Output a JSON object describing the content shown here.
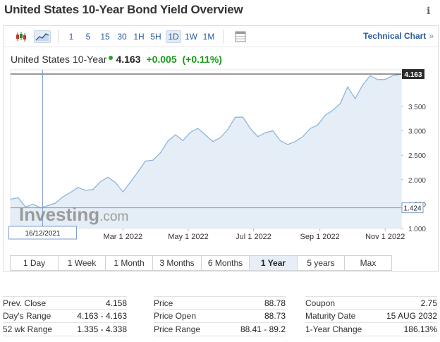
{
  "page": {
    "title": "United States 10-Year Bond Yield Overview",
    "info_icon": "i"
  },
  "toolbar": {
    "chart_type_icons": [
      "candlestick-icon",
      "area-chart-icon"
    ],
    "timeframes": [
      "1",
      "5",
      "15",
      "30",
      "1H",
      "5H",
      "1D",
      "1W",
      "1M"
    ],
    "active_timeframe": "1D",
    "settings_icon": "table-icon",
    "technical_chart_label": "Technical Chart",
    "technical_chart_arrow": "»"
  },
  "quote": {
    "name": "United States 10-Year",
    "last": "4.163",
    "change": "+0.005",
    "change_pct": "(+0.11%)"
  },
  "chart_data": {
    "type": "area",
    "title": "",
    "xlabel": "",
    "ylabel": "",
    "x_tick_labels": [
      "Mar 1 2022",
      "May 1 2022",
      "Jul 1 2022",
      "Sep 1 2022",
      "Nov 1 2022"
    ],
    "x_tick_dates": [
      "2022-03-01",
      "2022-05-01",
      "2022-07-01",
      "2022-09-01",
      "2022-11-01"
    ],
    "x_range": [
      "2021-11-16",
      "2022-11-16"
    ],
    "y_tick_labels": [
      "1.000",
      "1.500",
      "2.000",
      "2.500",
      "3.000",
      "3.500"
    ],
    "ylim": [
      1.0,
      4.25
    ],
    "last_value_label": "4.163",
    "crosshair_value_label": "1.424",
    "crosshair_date_label": "16/12/2021",
    "crosshair_date": "2021-12-16",
    "watermark": "Investing.com",
    "series": [
      {
        "x": [
          "2021-11-16",
          "2021-11-23",
          "2021-11-30",
          "2021-12-07",
          "2021-12-14",
          "2021-12-21",
          "2021-12-28",
          "2022-01-04",
          "2022-01-11",
          "2022-01-18",
          "2022-01-25",
          "2022-02-01",
          "2022-02-08",
          "2022-02-15",
          "2022-02-22",
          "2022-03-01",
          "2022-03-08",
          "2022-03-15",
          "2022-03-22",
          "2022-03-29",
          "2022-04-05",
          "2022-04-12",
          "2022-04-19",
          "2022-04-26",
          "2022-05-03",
          "2022-05-10",
          "2022-05-17",
          "2022-05-24",
          "2022-05-31",
          "2022-06-07",
          "2022-06-14",
          "2022-06-21",
          "2022-06-28",
          "2022-07-05",
          "2022-07-12",
          "2022-07-19",
          "2022-07-26",
          "2022-08-02",
          "2022-08-09",
          "2022-08-16",
          "2022-08-23",
          "2022-08-30",
          "2022-09-06",
          "2022-09-13",
          "2022-09-20",
          "2022-09-27",
          "2022-10-04",
          "2022-10-11",
          "2022-10-18",
          "2022-10-25",
          "2022-11-01",
          "2022-11-08",
          "2022-11-16"
        ],
        "values": [
          1.6,
          1.63,
          1.44,
          1.5,
          1.42,
          1.47,
          1.52,
          1.65,
          1.74,
          1.84,
          1.78,
          1.8,
          1.96,
          2.05,
          1.94,
          1.75,
          1.95,
          2.16,
          2.38,
          2.4,
          2.55,
          2.79,
          2.92,
          2.8,
          2.97,
          3.05,
          2.92,
          2.78,
          2.86,
          3.03,
          3.28,
          3.28,
          3.05,
          2.88,
          2.96,
          3.0,
          2.8,
          2.72,
          2.78,
          2.88,
          3.05,
          3.12,
          3.32,
          3.42,
          3.56,
          3.9,
          3.66,
          3.94,
          4.13,
          4.05,
          4.05,
          4.13,
          4.163
        ]
      }
    ]
  },
  "ranges": {
    "items": [
      "1 Day",
      "1 Week",
      "1 Month",
      "3 Months",
      "6 Months",
      "1 Year",
      "5 years",
      "Max"
    ],
    "active": "1 Year"
  },
  "stats": {
    "col1": [
      {
        "label": "Prev. Close",
        "value": "4.158"
      },
      {
        "label": "Day's Range",
        "value": "4.163 - 4.163"
      },
      {
        "label": "52 wk Range",
        "value": "1.335 - 4.338"
      }
    ],
    "col2": [
      {
        "label": "Price",
        "value": "88.78"
      },
      {
        "label": "Price Open",
        "value": "88.73"
      },
      {
        "label": "Price Range",
        "value": "88.41 - 89.2"
      }
    ],
    "col3": [
      {
        "label": "Coupon",
        "value": "2.75"
      },
      {
        "label": "Maturity Date",
        "value": "15 AUG 2032"
      },
      {
        "label": "1-Year Change",
        "value": "186.13%"
      }
    ]
  },
  "colors": {
    "accent": "#2a5b9f",
    "positive": "#1a9a1a",
    "series_line": "#8fb4dc",
    "area_fill": "#e5eef6",
    "crosshair": "#7e9fcb"
  }
}
